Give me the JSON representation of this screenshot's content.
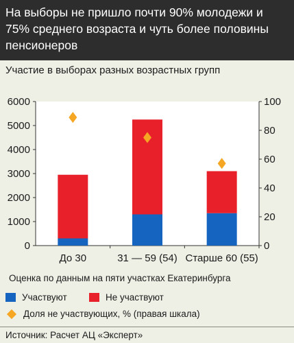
{
  "header": {
    "title": "На выборы не пришло почти 90% молодежи и 75% среднего возраста и чуть более половины пенсионеров",
    "subtitle": "Участие в выборах разных возрастных групп"
  },
  "chart_data": {
    "type": "bar",
    "stacked": true,
    "categories": [
      "До 30",
      "31 — 59 (54)",
      "Старше 60 (55)"
    ],
    "series": [
      {
        "name": "Участвуют",
        "color": "#1565c0",
        "values": [
          300,
          1300,
          1350
        ]
      },
      {
        "name": "Не участвуют",
        "color": "#e8202a",
        "values": [
          2650,
          3950,
          1750
        ]
      }
    ],
    "secondary_series": {
      "name": "Доля не участвующих, % (правая шкала)",
      "color": "#f5a623",
      "marker": "diamond",
      "values": [
        89,
        75,
        57
      ]
    },
    "ylim": [
      0,
      6000
    ],
    "yticks": [
      "0",
      "1000",
      "2000",
      "3000",
      "4000",
      "5000",
      "6000"
    ],
    "y2lim": [
      0,
      100
    ],
    "y2ticks": [
      "0",
      "20",
      "40",
      "60",
      "80",
      "100"
    ],
    "grid": false,
    "legend_position": "bottom"
  },
  "note": "Оценка по данным на пяти участках Екатеринбурга",
  "legend": {
    "participate": "Участвуют",
    "not_participate": "Не участвуют",
    "share": "Доля не участвующих, % (правая шкала)"
  },
  "source": "Источник: Расчет АЦ «Эксперт»"
}
